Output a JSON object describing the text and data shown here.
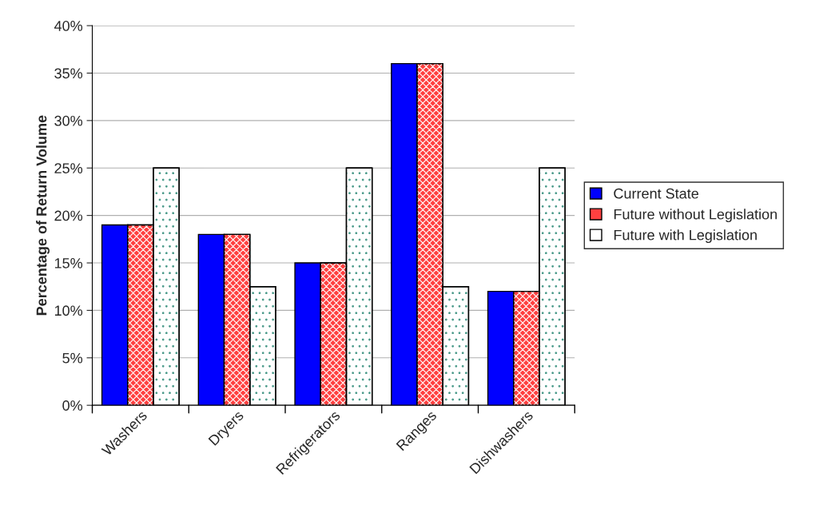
{
  "chart_data": {
    "type": "bar",
    "ylabel": "Percentage of Return Volume",
    "categories": [
      "Washers",
      "Dryers",
      "Refrigerators",
      "Ranges",
      "Dishwashers"
    ],
    "series": [
      {
        "name": "Current State",
        "color": "#0000ff",
        "values": [
          19,
          18,
          15,
          36,
          12
        ]
      },
      {
        "name": "Future without Legislation",
        "color": "#ff4040",
        "values": [
          19,
          18,
          15,
          36,
          12
        ]
      },
      {
        "name": "Future with Legislation",
        "color": "#ffffff",
        "values": [
          25,
          12.5,
          25,
          12.5,
          25
        ]
      }
    ],
    "ylim": [
      0,
      40
    ],
    "yticks": [
      {
        "value": 0,
        "label": "0%"
      },
      {
        "value": 5,
        "label": "5%"
      },
      {
        "value": 10,
        "label": "10%"
      },
      {
        "value": 15,
        "label": "15%"
      },
      {
        "value": 20,
        "label": "20%"
      },
      {
        "value": 25,
        "label": "25%"
      },
      {
        "value": 30,
        "label": "30%"
      },
      {
        "value": 35,
        "label": "35%"
      },
      {
        "value": 40,
        "label": "40%"
      }
    ],
    "grid": "y",
    "legend": "right"
  }
}
